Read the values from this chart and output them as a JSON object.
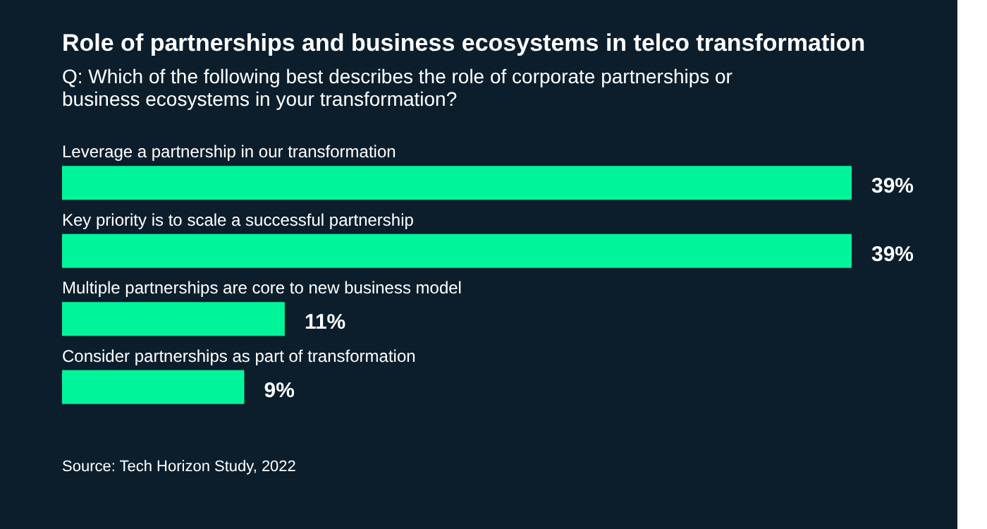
{
  "chart_data": {
    "type": "bar",
    "orientation": "horizontal",
    "title": "Role of partnerships and business ecosystems in telco transformation",
    "subtitle": [
      "Q: Which of the following best describes the role of corporate partnerships or",
      "business ecosystems in your transformation?"
    ],
    "categories": [
      "Leverage a partnership in our transformation",
      "Key priority is to scale a successful partnership",
      "Multiple partnerships are core to new business model",
      "Consider partnerships as part of transformation"
    ],
    "values": [
      39,
      39,
      11,
      9
    ],
    "value_labels": [
      "39%",
      "39%",
      "11%",
      "9%"
    ],
    "color": "#00f59b",
    "xlim": [
      0,
      39
    ],
    "annotations": [
      "Source: Tech Horizon Study, 2022"
    ]
  }
}
